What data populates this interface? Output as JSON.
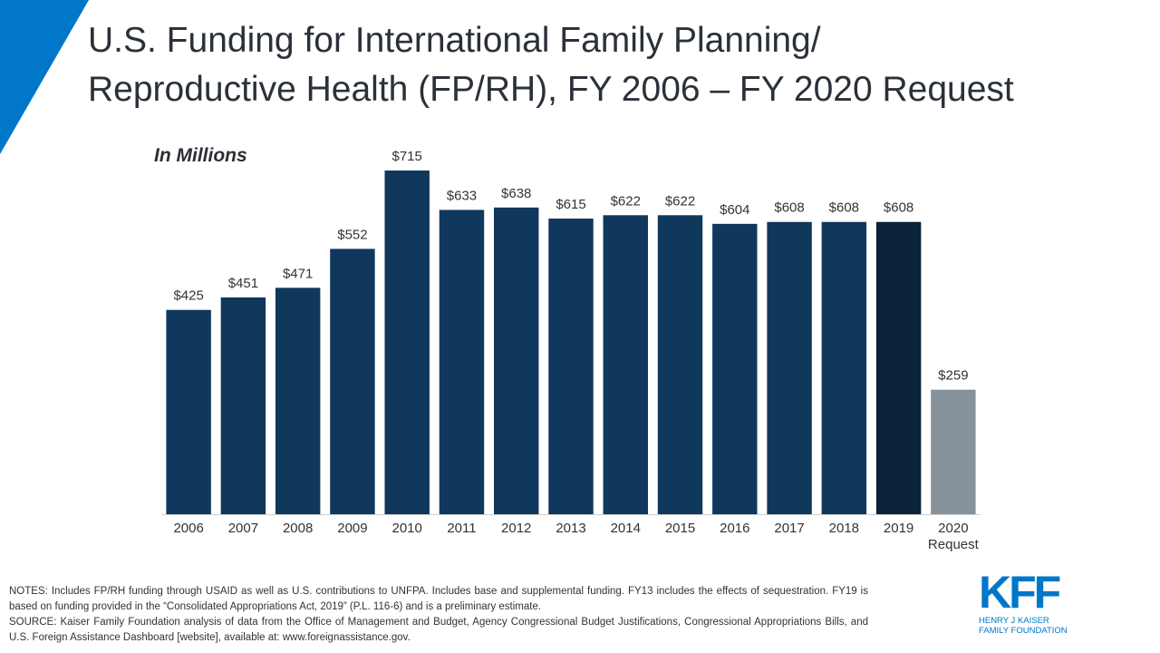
{
  "header": {
    "title_line1": "U.S. Funding for International Family Planning/",
    "title_line2": "Reproductive Health (FP/RH), FY 2006 – FY 2020 Request"
  },
  "units_label": "In Millions",
  "chart_data": {
    "type": "bar",
    "title": "U.S. Funding for International Family Planning/Reproductive Health (FP/RH), FY 2006 – FY 2020 Request",
    "ylabel": "In Millions",
    "xlabel": "",
    "ylim": [
      0,
      760
    ],
    "grid": false,
    "categories": [
      {
        "label": "2006",
        "sub": "",
        "value": 425,
        "display": "$425",
        "color": "#10375c"
      },
      {
        "label": "2007",
        "sub": "",
        "value": 451,
        "display": "$451",
        "color": "#10375c"
      },
      {
        "label": "2008",
        "sub": "",
        "value": 471,
        "display": "$471",
        "color": "#10375c"
      },
      {
        "label": "2009",
        "sub": "",
        "value": 552,
        "display": "$552",
        "color": "#10375c"
      },
      {
        "label": "2010",
        "sub": "",
        "value": 715,
        "display": "$715",
        "color": "#10375c"
      },
      {
        "label": "2011",
        "sub": "",
        "value": 633,
        "display": "$633",
        "color": "#10375c"
      },
      {
        "label": "2012",
        "sub": "",
        "value": 638,
        "display": "$638",
        "color": "#10375c"
      },
      {
        "label": "2013",
        "sub": "",
        "value": 615,
        "display": "$615",
        "color": "#10375c"
      },
      {
        "label": "2014",
        "sub": "",
        "value": 622,
        "display": "$622",
        "color": "#10375c"
      },
      {
        "label": "2015",
        "sub": "",
        "value": 622,
        "display": "$622",
        "color": "#10375c"
      },
      {
        "label": "2016",
        "sub": "",
        "value": 604,
        "display": "$604",
        "color": "#10375c"
      },
      {
        "label": "2017",
        "sub": "",
        "value": 608,
        "display": "$608",
        "color": "#10375c"
      },
      {
        "label": "2018",
        "sub": "",
        "value": 608,
        "display": "$608",
        "color": "#10375c"
      },
      {
        "label": "2019",
        "sub": "",
        "value": 608,
        "display": "$608",
        "color": "#0a2338"
      },
      {
        "label": "2020",
        "sub": "Request",
        "value": 259,
        "display": "$259",
        "color": "#86929b"
      }
    ]
  },
  "footer": {
    "notes": "NOTES: Includes FP/RH funding through USAID as well as U.S. contributions to UNFPA. Includes base and supplemental funding. FY13 includes the effects of sequestration. FY19 is based on funding provided in the “Consolidated Appropriations Act, 2019” (P.L. 116-6) and is a preliminary estimate.",
    "source": "SOURCE: Kaiser Family Foundation analysis of data from the Office of Management and Budget, Agency Congressional Budget Justifications, Congressional Appropriations Bills, and U.S. Foreign Assistance Dashboard [website], available at: www.foreignassistance.gov."
  },
  "logo": {
    "mark": "KFF",
    "line1": "HENRY J KAISER",
    "line2": "FAMILY FOUNDATION"
  },
  "colors": {
    "accent": "#0077c8",
    "bar": "#10375c",
    "bar_current": "#0a2338",
    "bar_request": "#86929b"
  }
}
